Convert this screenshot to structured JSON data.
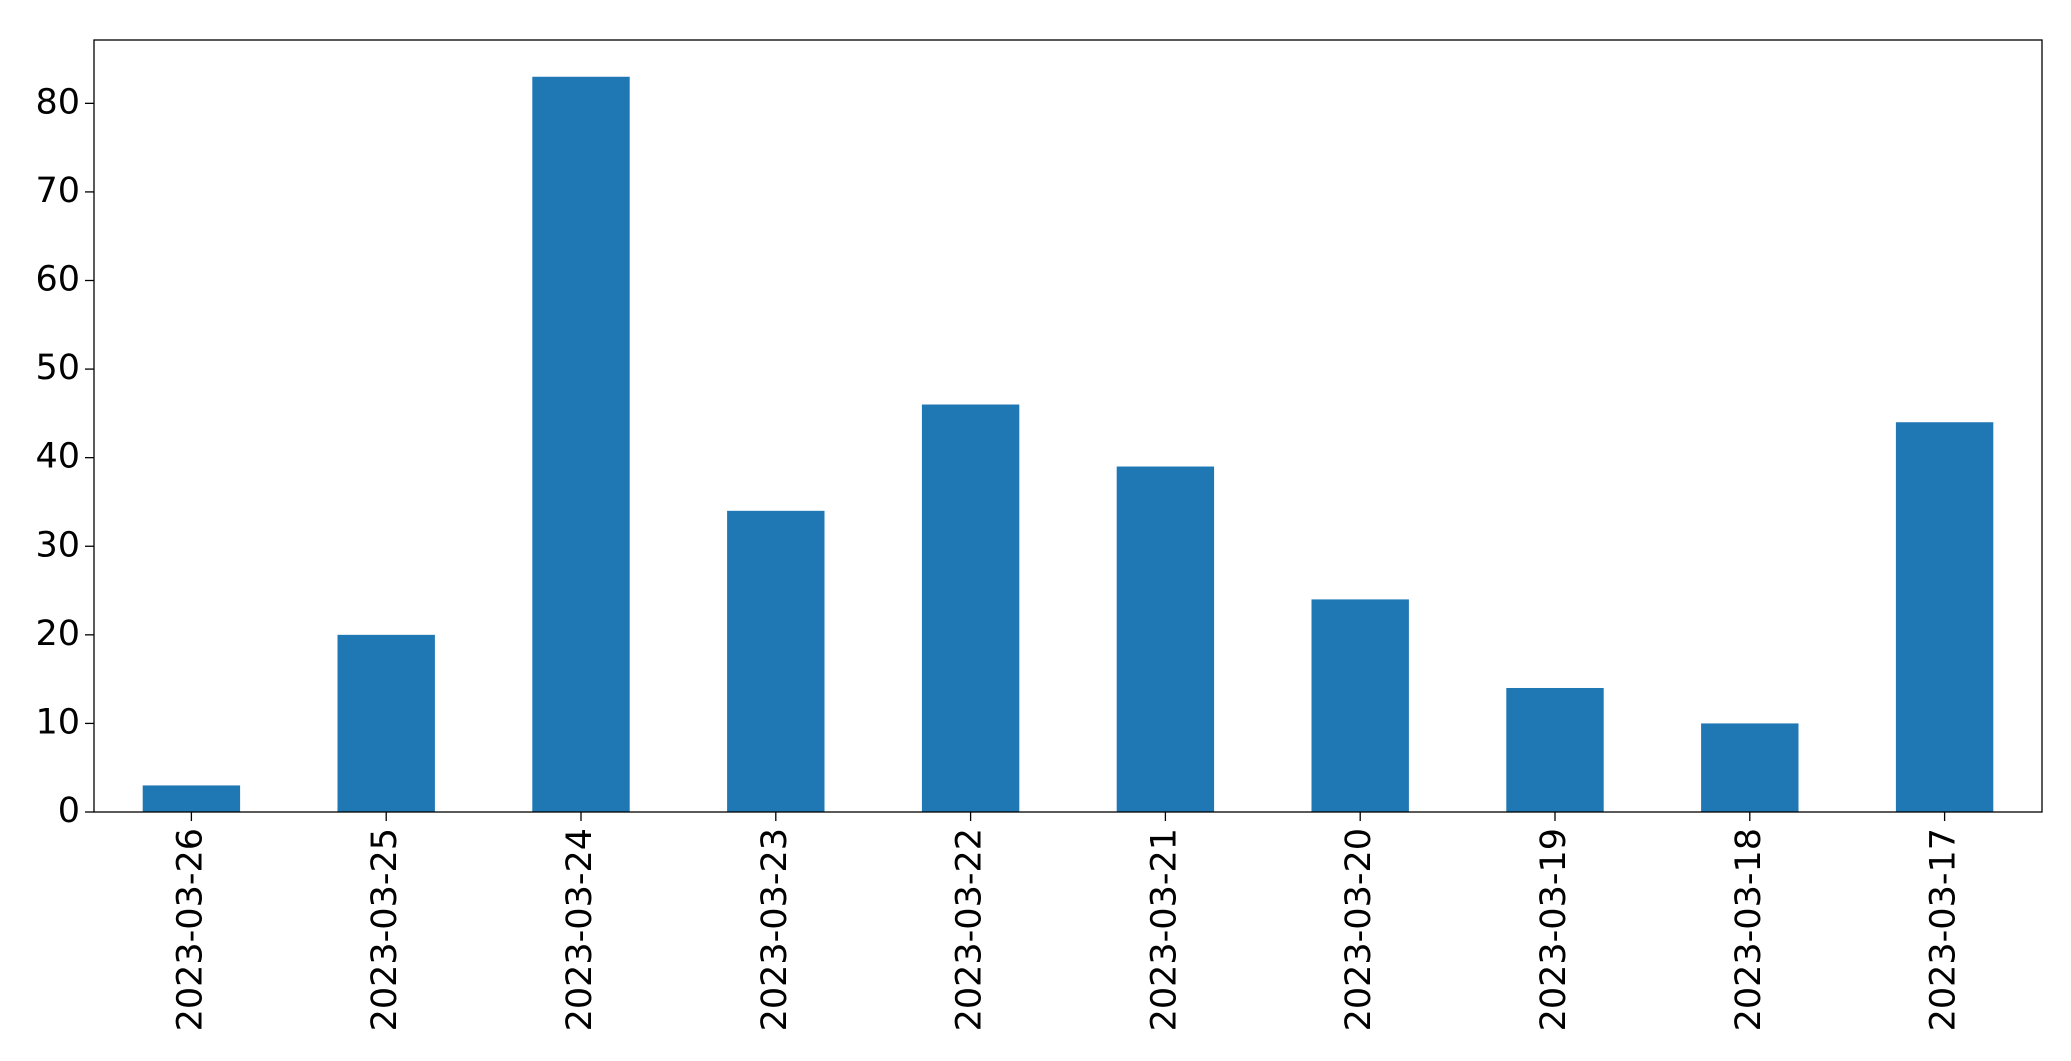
{
  "chart_data": {
    "type": "bar",
    "categories": [
      "2023-03-26",
      "2023-03-25",
      "2023-03-24",
      "2023-03-23",
      "2023-03-22",
      "2023-03-21",
      "2023-03-20",
      "2023-03-19",
      "2023-03-18",
      "2023-03-17"
    ],
    "values": [
      3,
      20,
      83,
      34,
      46,
      39,
      24,
      14,
      10,
      44
    ],
    "color": "#1f77b4",
    "ylim": [
      0,
      87.15
    ],
    "yticks": [
      0,
      10,
      20,
      30,
      40,
      50,
      60,
      70,
      80
    ],
    "grid": false
  }
}
